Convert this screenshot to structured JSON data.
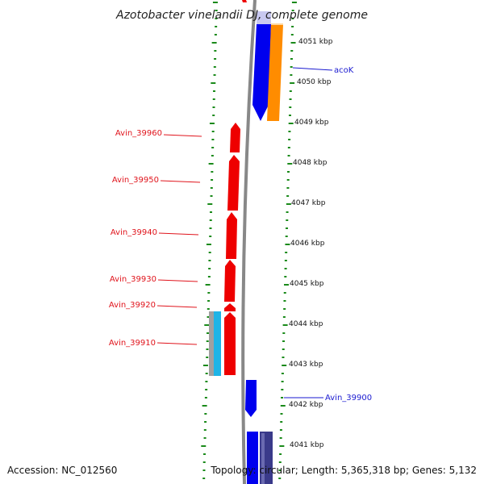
{
  "title": "Azotobacter vinelandii DJ, complete genome",
  "footer": {
    "accession": "Accession: NC_012560",
    "topology": "Topology: circular; Length: 5,365,318 bp; Genes: 5,132"
  },
  "scale_labels": [
    "4051 kbp",
    "4050 kbp",
    "4049 kbp",
    "4048 kbp",
    "4047 kbp",
    "4046 kbp",
    "4045 kbp",
    "4044 kbp",
    "4043 kbp",
    "4042 kbp",
    "4041 kbp"
  ],
  "gene_labels": [
    {
      "text": "Avin_39960",
      "strand": "reverse",
      "color": "#e0141c"
    },
    {
      "text": "Avin_39950",
      "strand": "reverse",
      "color": "#e0141c"
    },
    {
      "text": "Avin_39940",
      "strand": "reverse",
      "color": "#e0141c"
    },
    {
      "text": "Avin_39930",
      "strand": "reverse",
      "color": "#e0141c"
    },
    {
      "text": "Avin_39920",
      "strand": "reverse",
      "color": "#e0141c"
    },
    {
      "text": "Avin_39910",
      "strand": "reverse",
      "color": "#e0141c"
    },
    {
      "text": "acoK",
      "strand": "forward",
      "color": "#1a1ad0"
    },
    {
      "text": "Avin_39900",
      "strand": "forward",
      "color": "#1a1ad0"
    }
  ],
  "colors": {
    "forward_gene": "#0000ee",
    "reverse_gene": "#ee0000",
    "orange_feature": "#ff8c00",
    "cyan_feature": "#1eb4e6",
    "gray_feature": "#a0a0a0",
    "purple_feature": "#3a3a8a",
    "backbone": "#888888",
    "dotted_track": "#1a8a1a"
  }
}
